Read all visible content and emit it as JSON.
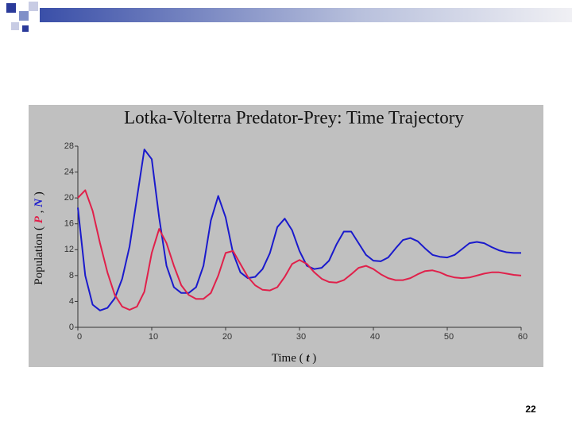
{
  "chart_data": {
    "type": "line",
    "title": "Lotka-Volterra Predator-Prey: Time Trajectory",
    "xlabel": [
      "Time (",
      "t",
      ")"
    ],
    "ylabel": [
      "Population (",
      "P",
      ",",
      "N",
      ")"
    ],
    "x": [
      0,
      1,
      2,
      3,
      4,
      5,
      6,
      7,
      8,
      9,
      10,
      11,
      12,
      13,
      14,
      15,
      16,
      17,
      18,
      19,
      20,
      21,
      22,
      23,
      24,
      25,
      26,
      27,
      28,
      29,
      30,
      31,
      32,
      33,
      34,
      35,
      36,
      37,
      38,
      39,
      40,
      41,
      42,
      43,
      44,
      45,
      46,
      47,
      48,
      49,
      50,
      51,
      52,
      53,
      54,
      55,
      56,
      57,
      58,
      59,
      60
    ],
    "series": [
      {
        "color": "#1a1acc",
        "values": [
          18.5,
          8,
          3.5,
          2.6,
          3,
          4.5,
          7.5,
          12.5,
          20,
          27.5,
          26,
          17,
          9.5,
          6.2,
          5.3,
          5.3,
          6.2,
          9.5,
          16.5,
          20.3,
          17,
          11.5,
          8.5,
          7.6,
          7.8,
          9,
          11.5,
          15.5,
          16.8,
          15,
          11.8,
          9.5,
          9,
          9.2,
          10.3,
          12.8,
          14.8,
          14.8,
          13,
          11.2,
          10.3,
          10.2,
          10.8,
          12.2,
          13.5,
          13.8,
          13.3,
          12.2,
          11.2,
          10.9,
          10.8,
          11.2,
          12.1,
          13,
          13.2,
          13,
          12.4,
          11.9,
          11.6,
          11.5,
          11.5
        ]
      },
      {
        "color": "#e0204a",
        "values": [
          20,
          21.2,
          18,
          13,
          8.5,
          5,
          3.2,
          2.7,
          3.2,
          5.5,
          11.5,
          15.2,
          13,
          9.5,
          6.5,
          5,
          4.4,
          4.4,
          5.3,
          8,
          11.5,
          11.8,
          9.8,
          7.8,
          6.5,
          5.8,
          5.7,
          6.2,
          7.8,
          9.8,
          10.4,
          9.8,
          8.5,
          7.5,
          7,
          6.9,
          7.3,
          8.2,
          9.2,
          9.5,
          9,
          8.2,
          7.6,
          7.3,
          7.3,
          7.6,
          8.2,
          8.7,
          8.8,
          8.5,
          8,
          7.7,
          7.6,
          7.7,
          8,
          8.3,
          8.5,
          8.5,
          8.3,
          8.1,
          8
        ]
      }
    ],
    "xlim": [
      0,
      60
    ],
    "xticks": [
      0,
      10,
      20,
      30,
      40,
      50,
      60
    ],
    "ylim": [
      0,
      28
    ],
    "yticks": [
      0,
      4,
      8,
      12,
      16,
      20,
      24,
      28
    ]
  },
  "page_number": "22"
}
